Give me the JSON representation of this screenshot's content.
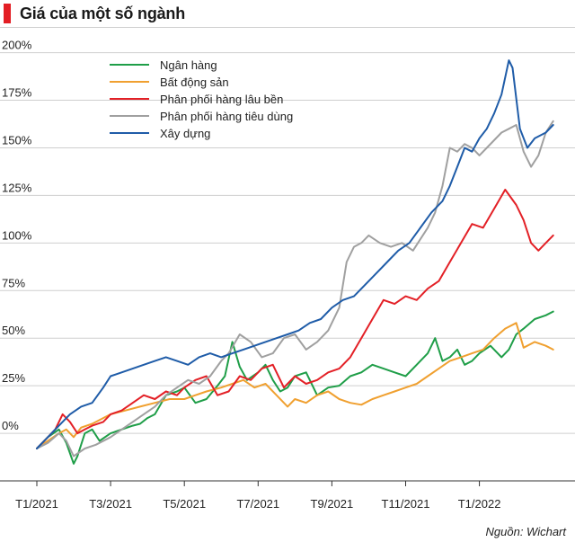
{
  "header": {
    "title": "Giá của một số ngành",
    "accent_color": "#e31e24"
  },
  "source": "Nguồn: Wichart",
  "chart_data": {
    "type": "line",
    "title": "Giá của một số ngành",
    "xlabel": "",
    "ylabel": "",
    "y_unit": "%",
    "ylim": [
      -25,
      205
    ],
    "y_ticks": [
      0,
      25,
      50,
      75,
      100,
      125,
      150,
      175,
      200
    ],
    "y_tick_labels": [
      "0%",
      "25%",
      "50%",
      "75%",
      "100%",
      "125%",
      "150%",
      "175%",
      "200%"
    ],
    "xlim": [
      0,
      14.3
    ],
    "x_ticks": [
      0,
      2,
      4,
      6,
      8,
      10,
      12
    ],
    "x_tick_labels": [
      "T1/2021",
      "T3/2021",
      "T5/2021",
      "T7/2021",
      "T9/2021",
      "T11/2021",
      "T1/2022"
    ],
    "x_unit": "months since Jan 2021",
    "grid": "horizontal",
    "legend_position": "top-left",
    "series": [
      {
        "name": "Ngân hàng",
        "color": "#1f9e48",
        "x": [
          0,
          0.3,
          0.6,
          0.8,
          1.0,
          1.1,
          1.3,
          1.5,
          1.7,
          2.0,
          2.3,
          2.6,
          2.8,
          3.0,
          3.2,
          3.5,
          3.8,
          4.0,
          4.3,
          4.6,
          4.9,
          5.1,
          5.3,
          5.5,
          5.7,
          6.0,
          6.2,
          6.4,
          6.6,
          6.8,
          7.0,
          7.3,
          7.6,
          7.9,
          8.2,
          8.5,
          8.8,
          9.1,
          9.4,
          9.7,
          10.0,
          10.3,
          10.6,
          10.8,
          11.0,
          11.2,
          11.4,
          11.6,
          11.8,
          12.0,
          12.3,
          12.6,
          12.8,
          13.0,
          13.2,
          13.5,
          13.8,
          14.0
        ],
        "values": [
          -8,
          -2,
          2,
          -5,
          -16,
          -12,
          0,
          2,
          -4,
          0,
          2,
          4,
          5,
          8,
          10,
          20,
          22,
          24,
          16,
          18,
          25,
          30,
          48,
          35,
          28,
          32,
          36,
          28,
          22,
          24,
          30,
          32,
          20,
          24,
          25,
          30,
          32,
          36,
          34,
          32,
          30,
          36,
          42,
          50,
          38,
          40,
          44,
          36,
          38,
          42,
          46,
          40,
          44,
          52,
          55,
          60,
          62,
          64
        ]
      },
      {
        "name": "Bất động sản",
        "color": "#f0a030",
        "x": [
          0,
          0.3,
          0.6,
          0.8,
          1.0,
          1.2,
          1.5,
          1.8,
          2.0,
          2.4,
          2.8,
          3.2,
          3.6,
          4.0,
          4.3,
          4.6,
          5.0,
          5.3,
          5.6,
          5.9,
          6.2,
          6.5,
          6.8,
          7.0,
          7.3,
          7.6,
          7.9,
          8.2,
          8.5,
          8.8,
          9.1,
          9.4,
          9.7,
          10.0,
          10.3,
          10.6,
          10.9,
          11.2,
          11.5,
          11.8,
          12.1,
          12.4,
          12.7,
          13.0,
          13.2,
          13.5,
          13.8,
          14.0
        ],
        "values": [
          -8,
          -4,
          0,
          2,
          -2,
          3,
          5,
          8,
          10,
          12,
          14,
          16,
          18,
          18,
          20,
          22,
          24,
          26,
          28,
          24,
          26,
          20,
          14,
          18,
          16,
          20,
          22,
          18,
          16,
          15,
          18,
          20,
          22,
          24,
          26,
          30,
          34,
          38,
          40,
          42,
          44,
          50,
          55,
          58,
          45,
          48,
          46,
          44
        ]
      },
      {
        "name": "Phân phối hàng lâu bền",
        "color": "#e32026",
        "x": [
          0,
          0.3,
          0.5,
          0.7,
          0.9,
          1.1,
          1.3,
          1.5,
          1.8,
          2.0,
          2.3,
          2.6,
          2.9,
          3.2,
          3.5,
          3.8,
          4.0,
          4.3,
          4.6,
          4.9,
          5.2,
          5.5,
          5.8,
          6.1,
          6.4,
          6.7,
          7.0,
          7.3,
          7.6,
          7.9,
          8.2,
          8.5,
          8.8,
          9.1,
          9.4,
          9.7,
          10.0,
          10.3,
          10.6,
          10.9,
          11.2,
          11.5,
          11.8,
          12.1,
          12.4,
          12.7,
          13.0,
          13.2,
          13.4,
          13.6,
          13.8,
          14.0
        ],
        "values": [
          -8,
          -2,
          2,
          10,
          6,
          0,
          2,
          4,
          6,
          10,
          12,
          16,
          20,
          18,
          22,
          20,
          24,
          28,
          30,
          20,
          22,
          30,
          28,
          34,
          36,
          24,
          30,
          26,
          28,
          32,
          34,
          40,
          50,
          60,
          70,
          68,
          72,
          70,
          76,
          80,
          90,
          100,
          110,
          108,
          118,
          128,
          120,
          112,
          100,
          96,
          100,
          104
        ]
      },
      {
        "name": "Phân phối hàng tiêu dùng",
        "color": "#a0a0a0",
        "x": [
          0,
          0.3,
          0.6,
          0.8,
          1.0,
          1.3,
          1.6,
          2.0,
          2.3,
          2.6,
          2.9,
          3.2,
          3.5,
          3.8,
          4.1,
          4.4,
          4.7,
          5.0,
          5.2,
          5.5,
          5.8,
          6.1,
          6.4,
          6.7,
          7.0,
          7.3,
          7.6,
          7.9,
          8.2,
          8.4,
          8.6,
          8.8,
          9.0,
          9.3,
          9.6,
          9.9,
          10.2,
          10.4,
          10.6,
          10.8,
          11.0,
          11.2,
          11.4,
          11.6,
          11.8,
          12.0,
          12.2,
          12.4,
          12.6,
          12.8,
          13.0,
          13.2,
          13.4,
          13.6,
          13.8,
          14.0
        ],
        "values": [
          -8,
          -5,
          0,
          -4,
          -12,
          -8,
          -6,
          -2,
          2,
          6,
          10,
          14,
          20,
          24,
          28,
          26,
          30,
          38,
          42,
          52,
          48,
          40,
          42,
          50,
          52,
          44,
          48,
          54,
          66,
          90,
          98,
          100,
          104,
          100,
          98,
          100,
          96,
          102,
          108,
          116,
          130,
          150,
          148,
          152,
          150,
          146,
          150,
          154,
          158,
          160,
          162,
          148,
          140,
          146,
          158,
          164
        ]
      },
      {
        "name": "Xây dựng",
        "color": "#1f5ca8",
        "x": [
          0,
          0.3,
          0.6,
          0.9,
          1.2,
          1.5,
          1.8,
          2.0,
          2.3,
          2.6,
          2.9,
          3.2,
          3.5,
          3.8,
          4.1,
          4.4,
          4.7,
          5.0,
          5.3,
          5.6,
          5.9,
          6.2,
          6.5,
          6.8,
          7.1,
          7.4,
          7.7,
          8.0,
          8.3,
          8.6,
          8.9,
          9.2,
          9.5,
          9.8,
          10.1,
          10.4,
          10.7,
          11.0,
          11.2,
          11.4,
          11.6,
          11.8,
          12.0,
          12.2,
          12.4,
          12.6,
          12.8,
          12.9,
          13.1,
          13.3,
          13.5,
          13.8,
          14.0
        ],
        "values": [
          -8,
          -2,
          4,
          10,
          14,
          16,
          24,
          30,
          32,
          34,
          36,
          38,
          40,
          38,
          36,
          40,
          42,
          40,
          42,
          44,
          46,
          48,
          50,
          52,
          54,
          58,
          60,
          66,
          70,
          72,
          78,
          84,
          90,
          96,
          100,
          108,
          116,
          122,
          130,
          140,
          150,
          148,
          155,
          160,
          168,
          178,
          196,
          192,
          160,
          150,
          155,
          158,
          162
        ]
      }
    ]
  }
}
